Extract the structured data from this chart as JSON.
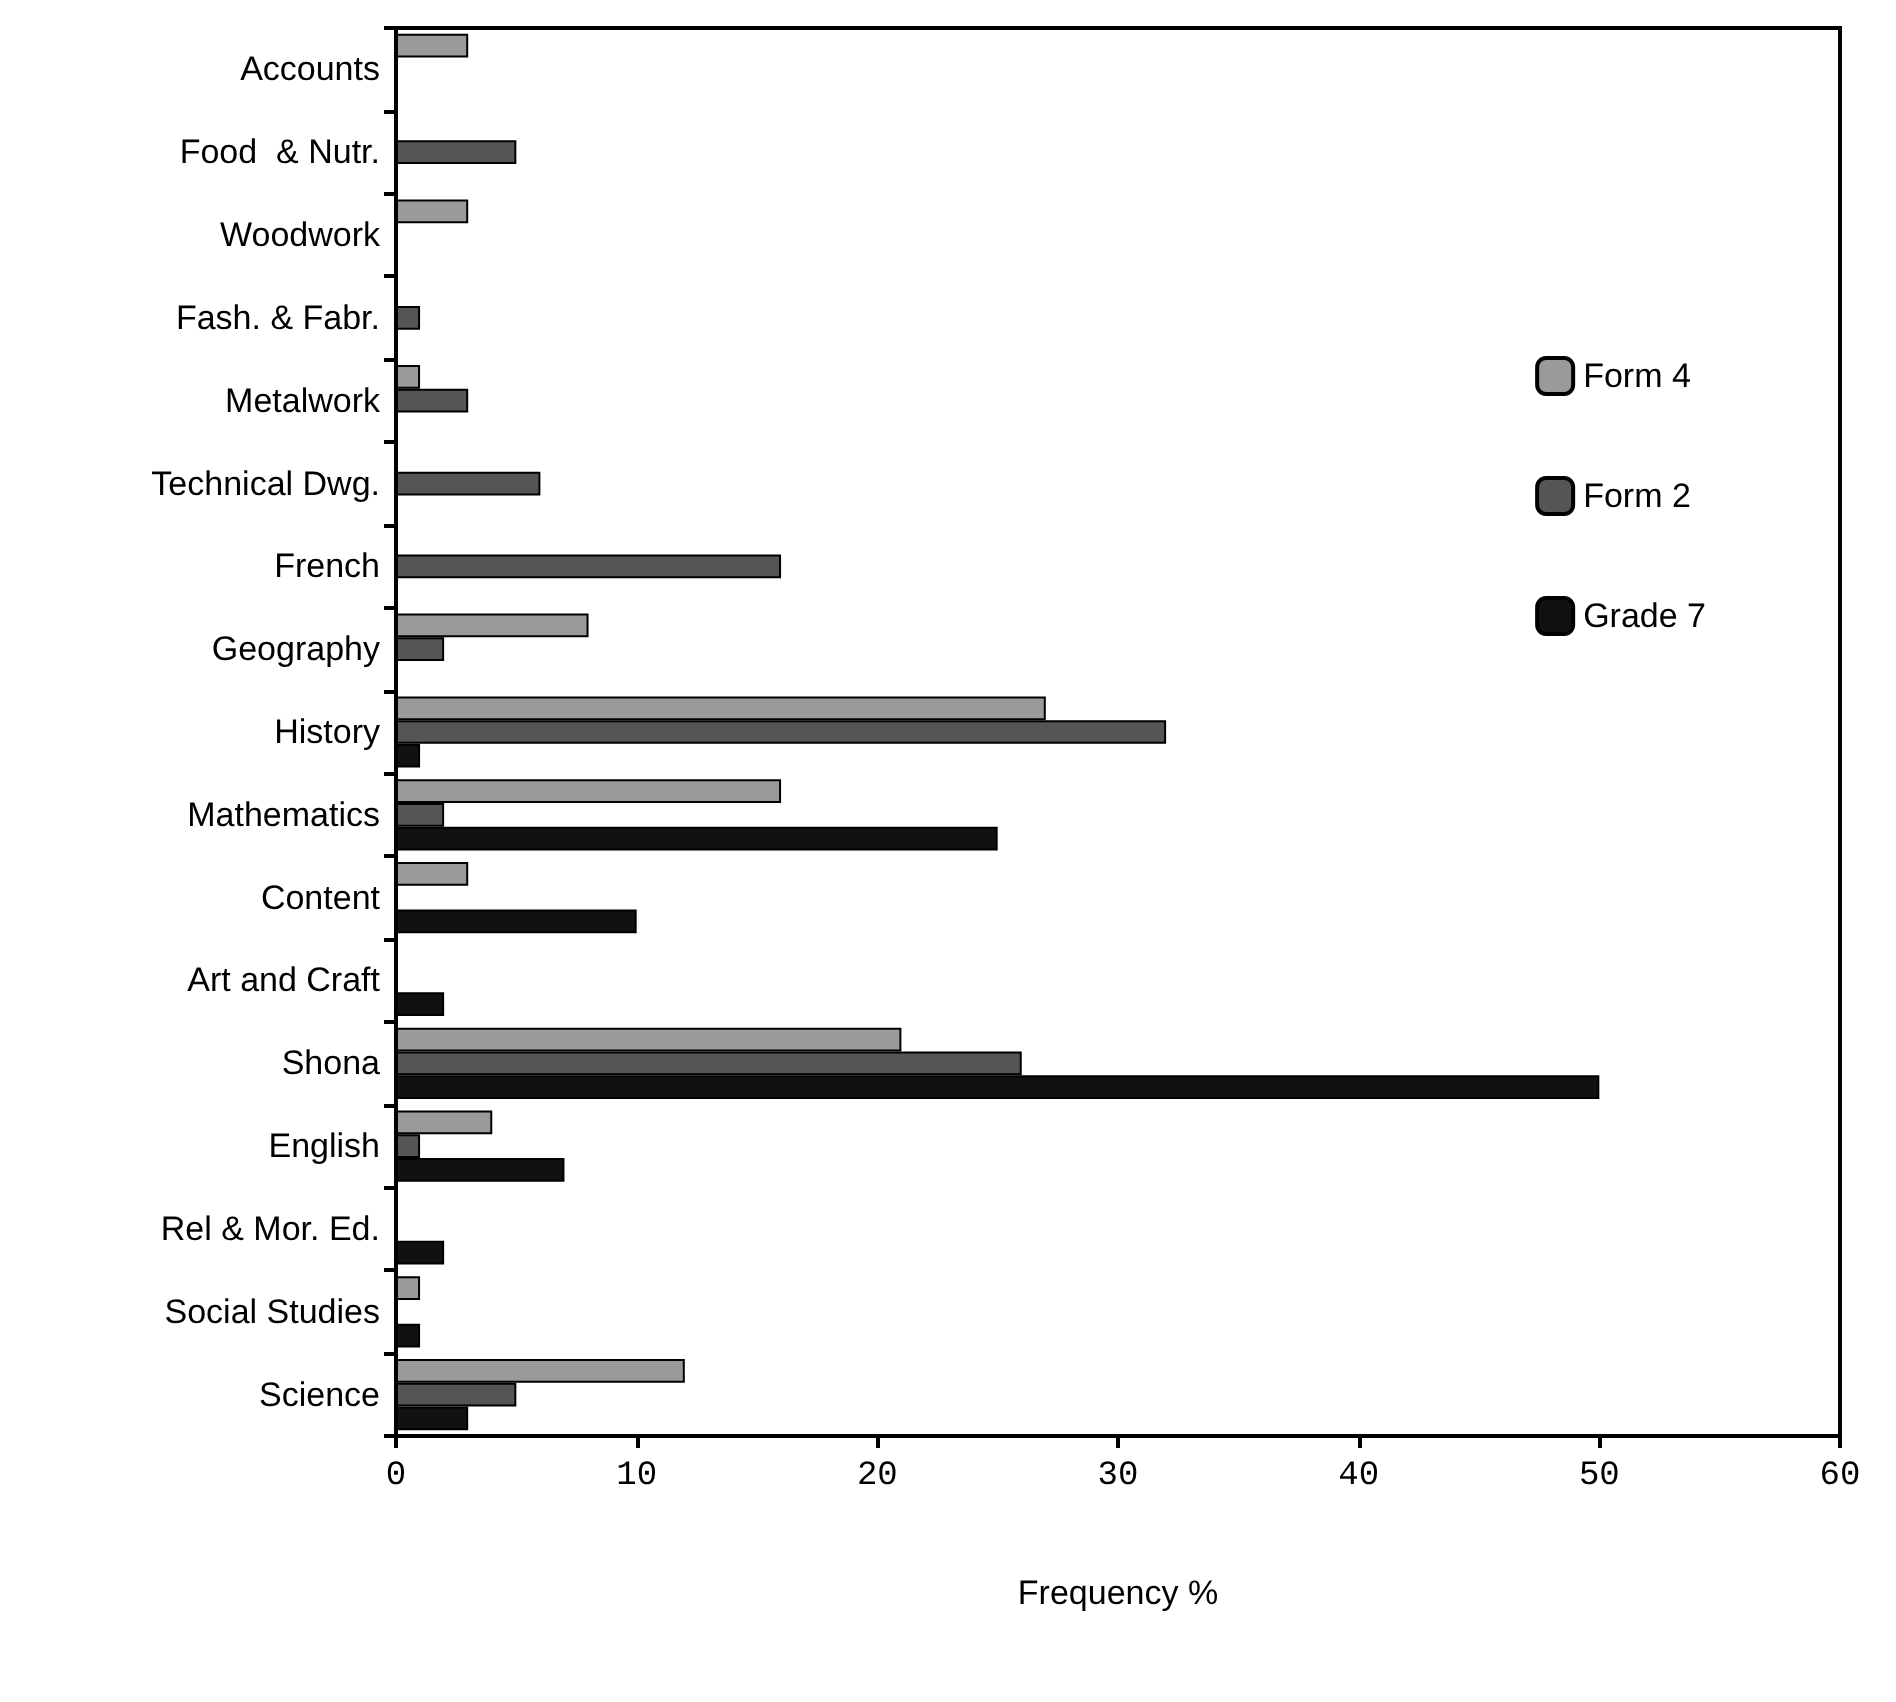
{
  "chart_data": {
    "type": "bar",
    "orientation": "horizontal",
    "xlabel": "Frequency %",
    "categories": [
      "Accounts",
      "Food  & Nutr.",
      "Woodwork",
      "Fash. & Fabr.",
      "Metalwork",
      "Technical Dwg.",
      "French",
      "Geography",
      "History",
      "Mathematics",
      "Content",
      "Art and Craft",
      "Shona",
      "English",
      "Rel & Mor. Ed.",
      "Social Studies",
      "Science"
    ],
    "series": [
      {
        "name": "Form 4",
        "color": "#9a9a9a",
        "values": [
          3,
          null,
          3,
          null,
          1,
          null,
          null,
          8,
          27,
          16,
          3,
          null,
          21,
          4,
          null,
          1,
          12
        ]
      },
      {
        "name": "Form 2",
        "color": "#555555",
        "values": [
          null,
          5,
          null,
          1,
          3,
          6,
          16,
          2,
          32,
          2,
          null,
          null,
          26,
          1,
          null,
          null,
          5
        ]
      },
      {
        "name": "Grade 7",
        "color": "#111111",
        "values": [
          null,
          null,
          null,
          null,
          null,
          null,
          null,
          null,
          1,
          25,
          10,
          2,
          50,
          7,
          2,
          1,
          3
        ]
      }
    ],
    "xlim": [
      0,
      60
    ],
    "xticks": [
      0,
      10,
      20,
      30,
      40,
      50,
      60
    ],
    "grid": false,
    "legend": "right"
  }
}
